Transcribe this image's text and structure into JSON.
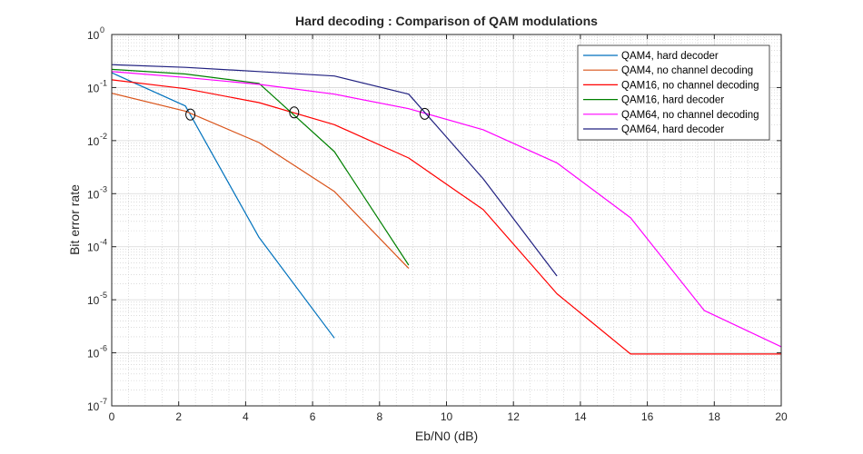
{
  "chart_data": {
    "type": "line",
    "title": "Hard decoding : Comparison of QAM modulations",
    "xlabel": "Eb/N0 (dB)",
    "ylabel": "Bit error rate",
    "xlim": [
      0,
      20
    ],
    "ylim": [
      1e-07,
      1
    ],
    "yscale": "log",
    "grid": true,
    "minor_grid": true,
    "legend_position": "top-right",
    "x_ticks": [
      0,
      2,
      4,
      6,
      8,
      10,
      12,
      14,
      16,
      18,
      20
    ],
    "y_ticks": [
      {
        "value": 1,
        "base": "10",
        "exp": "0"
      },
      {
        "value": 0.1,
        "base": "10",
        "exp": "-1"
      },
      {
        "value": 0.01,
        "base": "10",
        "exp": "-2"
      },
      {
        "value": 0.001,
        "base": "10",
        "exp": "-3"
      },
      {
        "value": 0.0001,
        "base": "10",
        "exp": "-4"
      },
      {
        "value": 1e-05,
        "base": "10",
        "exp": "-5"
      },
      {
        "value": 1e-06,
        "base": "10",
        "exp": "-6"
      },
      {
        "value": 1e-07,
        "base": "10",
        "exp": "-7"
      }
    ],
    "series": [
      {
        "name": "QAM4, hard decoder",
        "color": "#0072BD",
        "x": [
          0,
          2.2,
          4.4,
          6.65
        ],
        "y": [
          0.19,
          0.045,
          0.00015,
          1.9e-06
        ]
      },
      {
        "name": "QAM4, no channel decoding",
        "color": "#D95319",
        "x": [
          0,
          2.2,
          4.4,
          6.65,
          8.87
        ],
        "y": [
          0.078,
          0.036,
          0.0092,
          0.0011,
          3.9e-05
        ]
      },
      {
        "name": "QAM16, no channel decoding",
        "color": "#FF0000",
        "x": [
          0,
          2.2,
          4.4,
          6.65,
          8.87,
          11.1,
          13.3,
          15.5,
          17.7,
          20
        ],
        "y": [
          0.14,
          0.095,
          0.052,
          0.02,
          0.0047,
          0.0005,
          1.3e-05,
          9.5e-07,
          9.5e-07,
          9.5e-07
        ]
      },
      {
        "name": "QAM16, hard decoder",
        "color": "#008000",
        "x": [
          0,
          2.2,
          4.4,
          6.65,
          8.87
        ],
        "y": [
          0.22,
          0.18,
          0.12,
          0.0062,
          4.5e-05
        ]
      },
      {
        "name": "QAM64, no channel decoding",
        "color": "#FF00FF",
        "x": [
          0,
          2.2,
          4.4,
          6.65,
          8.87,
          11.1,
          13.3,
          15.5,
          17.7,
          20
        ],
        "y": [
          0.2,
          0.155,
          0.115,
          0.075,
          0.04,
          0.016,
          0.0038,
          0.00035,
          6.3e-06,
          1.3e-06
        ]
      },
      {
        "name": "QAM64, hard decoder",
        "color": "#202080",
        "x": [
          0,
          2.2,
          4.4,
          6.65,
          8.87,
          11.1,
          13.3
        ],
        "y": [
          0.27,
          0.24,
          0.2,
          0.165,
          0.075,
          0.0019,
          2.8e-05
        ]
      }
    ],
    "annotations": [
      {
        "type": "circle",
        "x": 2.35,
        "y": 0.031
      },
      {
        "type": "circle",
        "x": 5.45,
        "y": 0.034
      },
      {
        "type": "circle",
        "x": 9.35,
        "y": 0.032
      }
    ]
  }
}
